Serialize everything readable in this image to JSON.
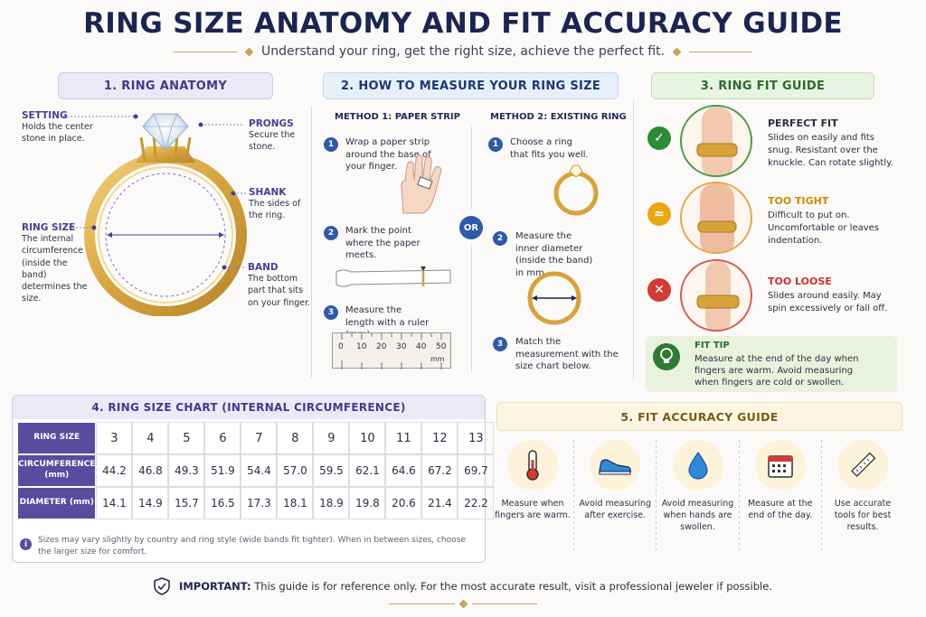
{
  "title": "RING SIZE ANATOMY AND FIT ACCURACY GUIDE",
  "subtitle": "Understand your ring, get the right size, achieve the perfect fit.",
  "anatomy": {
    "heading": "1. RING ANATOMY",
    "setting": {
      "title": "SETTING",
      "text": "Holds the center stone in place."
    },
    "prongs": {
      "title": "PRONGS",
      "text": "Secure the stone."
    },
    "shank": {
      "title": "SHANK",
      "text": "The sides of the ring."
    },
    "ring_size": {
      "title": "RING SIZE",
      "text": "The internal circumference (inside the band) determines the size."
    },
    "band": {
      "title": "BAND",
      "text": "The bottom part that sits on your finger."
    }
  },
  "measure": {
    "heading": "2. HOW TO MEASURE YOUR RING SIZE",
    "or_label": "OR",
    "method1": {
      "title": "METHOD 1: PAPER STRIP",
      "steps": [
        {
          "num": "1",
          "text": "Wrap a paper strip around the base of your finger."
        },
        {
          "num": "2",
          "text": "Mark the point where the paper meets."
        },
        {
          "num": "3",
          "text": "Measure the length with a ruler (mm)."
        }
      ],
      "ruler": {
        "ticks": [
          "0",
          "10",
          "20",
          "30",
          "40",
          "50"
        ],
        "unit": "mm"
      }
    },
    "method2": {
      "title": "METHOD 2: EXISTING RING",
      "steps": [
        {
          "num": "1",
          "text": "Choose a ring that fits you well."
        },
        {
          "num": "2",
          "text": "Measure the inner diameter (inside the band) in mm."
        },
        {
          "num": "3",
          "text": "Match the measurement with the size chart below."
        }
      ]
    }
  },
  "fit": {
    "heading": "3. RING FIT GUIDE",
    "perfect": {
      "title": "PERFECT FIT",
      "text": "Slides on easily and fits snug. Resistant over the knuckle. Can rotate slightly.",
      "color": "#2e8a35"
    },
    "tight": {
      "title": "TOO TIGHT",
      "text": "Difficult to put on. Uncomfortable or leaves indentation.",
      "color": "#d99a12"
    },
    "loose": {
      "title": "TOO LOOSE",
      "text": "Slides around easily. May spin excessively or fall off.",
      "color": "#d23a35"
    },
    "tip": {
      "title": "FIT TIP",
      "text": "Measure at the end of the day when fingers are warm. Avoid measuring when fingers are cold or swollen."
    }
  },
  "chart": {
    "heading": "4. RING SIZE CHART (INTERNAL CIRCUMFERENCE)",
    "size_label": "RING SIZE",
    "circ_label": "CIRCUMFERENCE (mm)",
    "diam_label": "DIAMETER (mm)",
    "sizes": [
      "3",
      "4",
      "5",
      "6",
      "7",
      "8",
      "9",
      "10",
      "11",
      "12",
      "13"
    ],
    "circumference": [
      "44.2",
      "46.8",
      "49.3",
      "51.9",
      "54.4",
      "57.0",
      "59.5",
      "62.1",
      "64.6",
      "67.2",
      "69.7"
    ],
    "diameter": [
      "14.1",
      "14.9",
      "15.7",
      "16.5",
      "17.3",
      "18.1",
      "18.9",
      "19.8",
      "20.6",
      "21.4",
      "22.2"
    ],
    "note": "Sizes may vary slightly by country and ring style (wide bands fit tighter). When in between sizes, choose the larger size for comfort."
  },
  "accuracy": {
    "heading": "5. FIT ACCURACY GUIDE",
    "items": [
      {
        "icon": "thermometer-icon",
        "text": "Measure when fingers are warm."
      },
      {
        "icon": "sneaker-icon",
        "text": "Avoid measuring after exercise."
      },
      {
        "icon": "water-drop-icon",
        "text": "Avoid measuring when hands are swollen."
      },
      {
        "icon": "calendar-icon",
        "text": "Measure at the end of the day."
      },
      {
        "icon": "ruler-icon",
        "text": "Use accurate tools for best results."
      }
    ]
  },
  "important": {
    "label": "IMPORTANT:",
    "text": "This guide is for reference only. For the most accurate result, visit a professional jeweler if possible."
  },
  "colors": {
    "navy": "#1b2550",
    "purple": "#43388c",
    "gold": "#c9a45a",
    "blue": "#2e5aa8"
  }
}
